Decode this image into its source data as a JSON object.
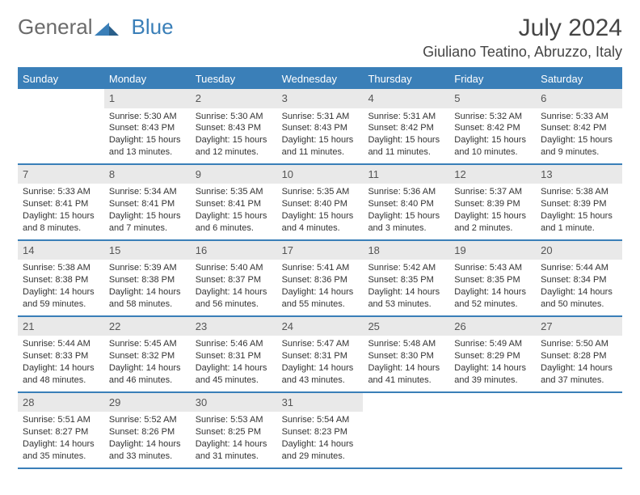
{
  "brand": {
    "general": "General",
    "blue": "Blue"
  },
  "title": "July 2024",
  "location": "Giuliano Teatino, Abruzzo, Italy",
  "colors": {
    "accent": "#3a7fb8",
    "header_row_bg": "#e9e9e9",
    "text": "#333333",
    "logo_gray": "#6b6b6b",
    "title_color": "#454545",
    "background": "#ffffff"
  },
  "typography": {
    "title_fontsize": 30,
    "location_fontsize": 18,
    "dayheader_fontsize": 13,
    "cell_fontsize": 11
  },
  "day_headers": [
    "Sunday",
    "Monday",
    "Tuesday",
    "Wednesday",
    "Thursday",
    "Friday",
    "Saturday"
  ],
  "weeks": [
    [
      {
        "n": "",
        "sunrise": "",
        "sunset": "",
        "daylight1": "",
        "daylight2": "",
        "empty": true
      },
      {
        "n": "1",
        "sunrise": "Sunrise: 5:30 AM",
        "sunset": "Sunset: 8:43 PM",
        "daylight1": "Daylight: 15 hours",
        "daylight2": "and 13 minutes."
      },
      {
        "n": "2",
        "sunrise": "Sunrise: 5:30 AM",
        "sunset": "Sunset: 8:43 PM",
        "daylight1": "Daylight: 15 hours",
        "daylight2": "and 12 minutes."
      },
      {
        "n": "3",
        "sunrise": "Sunrise: 5:31 AM",
        "sunset": "Sunset: 8:43 PM",
        "daylight1": "Daylight: 15 hours",
        "daylight2": "and 11 minutes."
      },
      {
        "n": "4",
        "sunrise": "Sunrise: 5:31 AM",
        "sunset": "Sunset: 8:42 PM",
        "daylight1": "Daylight: 15 hours",
        "daylight2": "and 11 minutes."
      },
      {
        "n": "5",
        "sunrise": "Sunrise: 5:32 AM",
        "sunset": "Sunset: 8:42 PM",
        "daylight1": "Daylight: 15 hours",
        "daylight2": "and 10 minutes."
      },
      {
        "n": "6",
        "sunrise": "Sunrise: 5:33 AM",
        "sunset": "Sunset: 8:42 PM",
        "daylight1": "Daylight: 15 hours",
        "daylight2": "and 9 minutes."
      }
    ],
    [
      {
        "n": "7",
        "sunrise": "Sunrise: 5:33 AM",
        "sunset": "Sunset: 8:41 PM",
        "daylight1": "Daylight: 15 hours",
        "daylight2": "and 8 minutes."
      },
      {
        "n": "8",
        "sunrise": "Sunrise: 5:34 AM",
        "sunset": "Sunset: 8:41 PM",
        "daylight1": "Daylight: 15 hours",
        "daylight2": "and 7 minutes."
      },
      {
        "n": "9",
        "sunrise": "Sunrise: 5:35 AM",
        "sunset": "Sunset: 8:41 PM",
        "daylight1": "Daylight: 15 hours",
        "daylight2": "and 6 minutes."
      },
      {
        "n": "10",
        "sunrise": "Sunrise: 5:35 AM",
        "sunset": "Sunset: 8:40 PM",
        "daylight1": "Daylight: 15 hours",
        "daylight2": "and 4 minutes."
      },
      {
        "n": "11",
        "sunrise": "Sunrise: 5:36 AM",
        "sunset": "Sunset: 8:40 PM",
        "daylight1": "Daylight: 15 hours",
        "daylight2": "and 3 minutes."
      },
      {
        "n": "12",
        "sunrise": "Sunrise: 5:37 AM",
        "sunset": "Sunset: 8:39 PM",
        "daylight1": "Daylight: 15 hours",
        "daylight2": "and 2 minutes."
      },
      {
        "n": "13",
        "sunrise": "Sunrise: 5:38 AM",
        "sunset": "Sunset: 8:39 PM",
        "daylight1": "Daylight: 15 hours",
        "daylight2": "and 1 minute."
      }
    ],
    [
      {
        "n": "14",
        "sunrise": "Sunrise: 5:38 AM",
        "sunset": "Sunset: 8:38 PM",
        "daylight1": "Daylight: 14 hours",
        "daylight2": "and 59 minutes."
      },
      {
        "n": "15",
        "sunrise": "Sunrise: 5:39 AM",
        "sunset": "Sunset: 8:38 PM",
        "daylight1": "Daylight: 14 hours",
        "daylight2": "and 58 minutes."
      },
      {
        "n": "16",
        "sunrise": "Sunrise: 5:40 AM",
        "sunset": "Sunset: 8:37 PM",
        "daylight1": "Daylight: 14 hours",
        "daylight2": "and 56 minutes."
      },
      {
        "n": "17",
        "sunrise": "Sunrise: 5:41 AM",
        "sunset": "Sunset: 8:36 PM",
        "daylight1": "Daylight: 14 hours",
        "daylight2": "and 55 minutes."
      },
      {
        "n": "18",
        "sunrise": "Sunrise: 5:42 AM",
        "sunset": "Sunset: 8:35 PM",
        "daylight1": "Daylight: 14 hours",
        "daylight2": "and 53 minutes."
      },
      {
        "n": "19",
        "sunrise": "Sunrise: 5:43 AM",
        "sunset": "Sunset: 8:35 PM",
        "daylight1": "Daylight: 14 hours",
        "daylight2": "and 52 minutes."
      },
      {
        "n": "20",
        "sunrise": "Sunrise: 5:44 AM",
        "sunset": "Sunset: 8:34 PM",
        "daylight1": "Daylight: 14 hours",
        "daylight2": "and 50 minutes."
      }
    ],
    [
      {
        "n": "21",
        "sunrise": "Sunrise: 5:44 AM",
        "sunset": "Sunset: 8:33 PM",
        "daylight1": "Daylight: 14 hours",
        "daylight2": "and 48 minutes."
      },
      {
        "n": "22",
        "sunrise": "Sunrise: 5:45 AM",
        "sunset": "Sunset: 8:32 PM",
        "daylight1": "Daylight: 14 hours",
        "daylight2": "and 46 minutes."
      },
      {
        "n": "23",
        "sunrise": "Sunrise: 5:46 AM",
        "sunset": "Sunset: 8:31 PM",
        "daylight1": "Daylight: 14 hours",
        "daylight2": "and 45 minutes."
      },
      {
        "n": "24",
        "sunrise": "Sunrise: 5:47 AM",
        "sunset": "Sunset: 8:31 PM",
        "daylight1": "Daylight: 14 hours",
        "daylight2": "and 43 minutes."
      },
      {
        "n": "25",
        "sunrise": "Sunrise: 5:48 AM",
        "sunset": "Sunset: 8:30 PM",
        "daylight1": "Daylight: 14 hours",
        "daylight2": "and 41 minutes."
      },
      {
        "n": "26",
        "sunrise": "Sunrise: 5:49 AM",
        "sunset": "Sunset: 8:29 PM",
        "daylight1": "Daylight: 14 hours",
        "daylight2": "and 39 minutes."
      },
      {
        "n": "27",
        "sunrise": "Sunrise: 5:50 AM",
        "sunset": "Sunset: 8:28 PM",
        "daylight1": "Daylight: 14 hours",
        "daylight2": "and 37 minutes."
      }
    ],
    [
      {
        "n": "28",
        "sunrise": "Sunrise: 5:51 AM",
        "sunset": "Sunset: 8:27 PM",
        "daylight1": "Daylight: 14 hours",
        "daylight2": "and 35 minutes."
      },
      {
        "n": "29",
        "sunrise": "Sunrise: 5:52 AM",
        "sunset": "Sunset: 8:26 PM",
        "daylight1": "Daylight: 14 hours",
        "daylight2": "and 33 minutes."
      },
      {
        "n": "30",
        "sunrise": "Sunrise: 5:53 AM",
        "sunset": "Sunset: 8:25 PM",
        "daylight1": "Daylight: 14 hours",
        "daylight2": "and 31 minutes."
      },
      {
        "n": "31",
        "sunrise": "Sunrise: 5:54 AM",
        "sunset": "Sunset: 8:23 PM",
        "daylight1": "Daylight: 14 hours",
        "daylight2": "and 29 minutes."
      },
      {
        "n": "",
        "sunrise": "",
        "sunset": "",
        "daylight1": "",
        "daylight2": "",
        "empty": true
      },
      {
        "n": "",
        "sunrise": "",
        "sunset": "",
        "daylight1": "",
        "daylight2": "",
        "empty": true
      },
      {
        "n": "",
        "sunrise": "",
        "sunset": "",
        "daylight1": "",
        "daylight2": "",
        "empty": true
      }
    ]
  ]
}
